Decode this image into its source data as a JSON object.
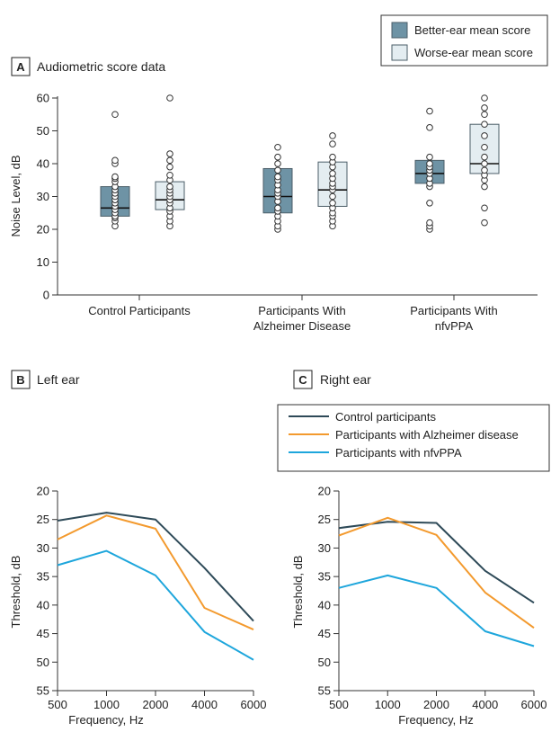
{
  "chart_data": [
    {
      "panel_label": "A",
      "title": "Audiometric score data",
      "type": "box",
      "ylabel": "Noise Level, dB",
      "ylim": [
        0,
        60
      ],
      "yticks": [
        "0",
        "10",
        "20",
        "30",
        "40",
        "50",
        "60"
      ],
      "categories": [
        "Control Participants",
        "Participants With Alzheimer Disease",
        "Participants With nfvPPA"
      ],
      "category_lines": [
        [
          "Control Participants"
        ],
        [
          "Participants With",
          "Alzheimer Disease"
        ],
        [
          "Participants With",
          "nfvPPA"
        ]
      ],
      "legend": [
        "Better-ear mean score",
        "Worse-ear mean score"
      ],
      "colors": {
        "better": "#6e93a5",
        "worse": "#e4edf1",
        "box_stroke": "#4b5e68"
      },
      "series": [
        {
          "name": "Better-ear mean score",
          "boxes": [
            {
              "q1": 24,
              "median": 26.5,
              "q3": 33,
              "points": [
                21,
                22.5,
                23.5,
                24,
                25,
                26,
                27,
                28,
                29,
                30,
                31,
                32,
                33,
                34.5,
                35.5,
                36,
                40,
                41,
                55
              ]
            },
            {
              "q1": 25,
              "median": 30,
              "q3": 38.5,
              "points": [
                20,
                21,
                22.5,
                24,
                25.5,
                26.5,
                28.5,
                30,
                31,
                32,
                33.5,
                35,
                36,
                38,
                40,
                42,
                45
              ]
            },
            {
              "q1": 34,
              "median": 37,
              "q3": 41,
              "points": [
                20,
                21,
                22,
                28,
                33,
                34,
                35.5,
                37,
                38,
                39,
                40,
                42,
                51,
                56
              ]
            }
          ]
        },
        {
          "name": "Worse-ear mean score",
          "boxes": [
            {
              "q1": 26,
              "median": 29,
              "q3": 34.5,
              "points": [
                21,
                22.5,
                24,
                25.5,
                26.5,
                28,
                29,
                30,
                31,
                32,
                33,
                35,
                36.5,
                39,
                41,
                43,
                60
              ]
            },
            {
              "q1": 27,
              "median": 32,
              "q3": 40.5,
              "points": [
                21,
                22.5,
                24,
                25,
                26.5,
                28,
                30,
                32,
                33,
                34,
                35.5,
                37,
                39,
                40.5,
                42,
                46,
                48.5
              ]
            },
            {
              "q1": 37,
              "median": 40,
              "q3": 52,
              "points": [
                22,
                26.5,
                33,
                35,
                36.5,
                38,
                40,
                42,
                45,
                48.5,
                52,
                55,
                57,
                60
              ]
            }
          ]
        }
      ]
    },
    {
      "panel_label": "B",
      "title": "Left ear",
      "type": "line",
      "xlabel": "Frequency, Hz",
      "ylabel": "Threshold, dB",
      "x": [
        "500",
        "1000",
        "2000",
        "4000",
        "6000"
      ],
      "ylim": [
        20,
        55
      ],
      "y_inverted": true,
      "yticks": [
        "20",
        "25",
        "30",
        "35",
        "40",
        "45",
        "50",
        "55"
      ],
      "series": [
        {
          "name": "Control participants",
          "color": "#2e4a58",
          "values": [
            25.2,
            23.8,
            25,
            33.5,
            42.8
          ]
        },
        {
          "name": "Participants with Alzheimer disease",
          "color": "#f39a2e",
          "values": [
            28.5,
            24.3,
            26.6,
            40.5,
            44.3
          ]
        },
        {
          "name": "Participants with nfvPPA",
          "color": "#1ea6dc",
          "values": [
            33,
            30.5,
            34.8,
            44.7,
            49.6
          ]
        }
      ]
    },
    {
      "panel_label": "C",
      "title": "Right ear",
      "type": "line",
      "xlabel": "Frequency, Hz",
      "ylabel": "Threshold, dB",
      "x": [
        "500",
        "1000",
        "2000",
        "4000",
        "6000"
      ],
      "ylim": [
        20,
        55
      ],
      "y_inverted": true,
      "yticks": [
        "20",
        "25",
        "30",
        "35",
        "40",
        "45",
        "50",
        "55"
      ],
      "series": [
        {
          "name": "Control participants",
          "color": "#2e4a58",
          "values": [
            26.5,
            25.4,
            25.6,
            34,
            39.6
          ]
        },
        {
          "name": "Participants with Alzheimer disease",
          "color": "#f39a2e",
          "values": [
            27.8,
            24.7,
            27.7,
            37.8,
            44
          ]
        },
        {
          "name": "Participants with nfvPPA",
          "color": "#1ea6dc",
          "values": [
            37,
            34.8,
            37,
            44.6,
            47.2
          ]
        }
      ]
    }
  ]
}
